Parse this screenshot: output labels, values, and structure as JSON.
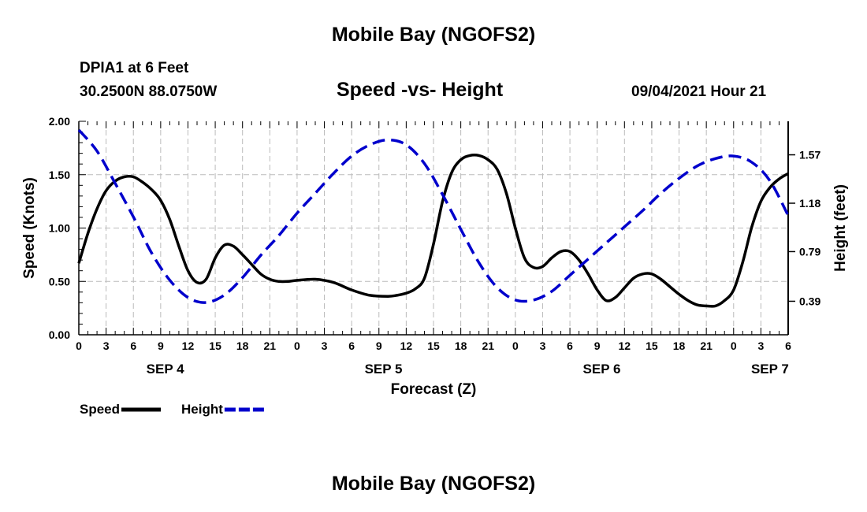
{
  "header": {
    "title": "Mobile Bay (NGOFS2)",
    "station": "DPIA1 at 6 Feet",
    "coords": "30.2500N  88.0750W",
    "datetime": "09/04/2021 Hour 21"
  },
  "footer": {
    "title": "Mobile Bay (NGOFS2)"
  },
  "chart_data": {
    "type": "line",
    "title": "Speed -vs- Height",
    "xlabel": "Forecast (Z)",
    "ylabel": "Speed (Knots)",
    "y2label": "Height (feet)",
    "grid": true,
    "xlim": [
      0,
      78
    ],
    "ylim": [
      0,
      2
    ],
    "y2lim": [
      0.12,
      1.84
    ],
    "xticks": [
      0,
      3,
      6,
      9,
      12,
      15,
      18,
      21,
      24,
      27,
      30,
      33,
      36,
      39,
      42,
      45,
      48,
      51,
      54,
      57,
      60,
      63,
      66,
      69,
      72,
      75,
      78
    ],
    "xtick_labels": [
      "0",
      "3",
      "6",
      "9",
      "12",
      "15",
      "18",
      "21",
      "0",
      "3",
      "6",
      "9",
      "12",
      "15",
      "18",
      "21",
      "0",
      "3",
      "6",
      "9",
      "12",
      "15",
      "18",
      "21",
      "0",
      "3",
      "6"
    ],
    "yticks": [
      0,
      0.5,
      1,
      1.5,
      2
    ],
    "ytick_labels": [
      "0.00",
      "0.50",
      "1.00",
      "1.50",
      "2.00"
    ],
    "y2ticks": [
      0.39,
      0.79,
      1.18,
      1.57
    ],
    "y2tick_labels": [
      "0.39",
      "0.79",
      "1.18",
      "1.57"
    ],
    "date_labels": [
      {
        "x": 9.5,
        "label": "SEP 4"
      },
      {
        "x": 33.5,
        "label": "SEP 5"
      },
      {
        "x": 57.5,
        "label": "SEP 6"
      },
      {
        "x": 76,
        "label": "SEP 7"
      }
    ],
    "legend": [
      {
        "name": "Speed",
        "color": "#000000",
        "style": "solid"
      },
      {
        "name": "Height",
        "color": "#0000cc",
        "style": "dashed"
      }
    ],
    "series": [
      {
        "name": "Speed",
        "axis": "left",
        "color": "#000000",
        "style": "solid",
        "x": [
          0,
          1,
          2,
          3,
          4,
          5,
          6,
          7,
          8,
          9,
          10,
          11,
          12,
          13,
          14,
          15,
          16,
          17,
          18,
          19,
          20,
          21,
          22,
          23,
          24,
          26,
          28,
          30,
          32,
          34,
          35,
          36,
          37,
          38,
          39,
          40,
          41,
          42,
          43,
          44,
          45,
          46,
          47,
          48,
          49,
          50,
          51,
          52,
          53,
          54,
          55,
          56,
          57,
          58,
          59,
          60,
          61,
          62,
          63,
          64,
          65,
          66,
          67,
          68,
          69,
          70,
          71,
          72,
          73,
          74,
          75,
          76,
          77,
          78
        ],
        "values": [
          0.67,
          0.95,
          1.18,
          1.35,
          1.44,
          1.48,
          1.48,
          1.43,
          1.36,
          1.26,
          1.08,
          0.83,
          0.6,
          0.49,
          0.52,
          0.72,
          0.84,
          0.83,
          0.75,
          0.66,
          0.57,
          0.52,
          0.5,
          0.5,
          0.51,
          0.52,
          0.49,
          0.42,
          0.37,
          0.36,
          0.37,
          0.39,
          0.43,
          0.53,
          0.85,
          1.25,
          1.52,
          1.64,
          1.68,
          1.68,
          1.64,
          1.55,
          1.33,
          1.0,
          0.72,
          0.63,
          0.64,
          0.72,
          0.78,
          0.78,
          0.7,
          0.57,
          0.42,
          0.32,
          0.35,
          0.44,
          0.53,
          0.57,
          0.57,
          0.52,
          0.45,
          0.38,
          0.32,
          0.28,
          0.27,
          0.27,
          0.32,
          0.42,
          0.68,
          1.01,
          1.25,
          1.38,
          1.46,
          1.51
        ]
      },
      {
        "name": "Height",
        "axis": "right",
        "color": "#0000cc",
        "style": "dashed",
        "x": [
          0,
          2,
          4,
          6,
          8,
          10,
          12,
          14,
          16,
          18,
          20,
          22,
          24,
          26,
          28,
          30,
          32,
          34,
          36,
          38,
          40,
          42,
          44,
          46,
          48,
          50,
          52,
          54,
          56,
          58,
          60,
          62,
          64,
          66,
          68,
          70,
          72,
          74,
          76,
          78
        ],
        "values": [
          1.77,
          1.6,
          1.34,
          1.07,
          0.78,
          0.56,
          0.42,
          0.38,
          0.44,
          0.58,
          0.76,
          0.92,
          1.1,
          1.26,
          1.42,
          1.56,
          1.65,
          1.69,
          1.65,
          1.5,
          1.25,
          0.97,
          0.7,
          0.5,
          0.4,
          0.4,
          0.47,
          0.6,
          0.73,
          0.86,
          0.99,
          1.12,
          1.26,
          1.38,
          1.48,
          1.54,
          1.56,
          1.51,
          1.36,
          1.08
        ]
      }
    ]
  }
}
